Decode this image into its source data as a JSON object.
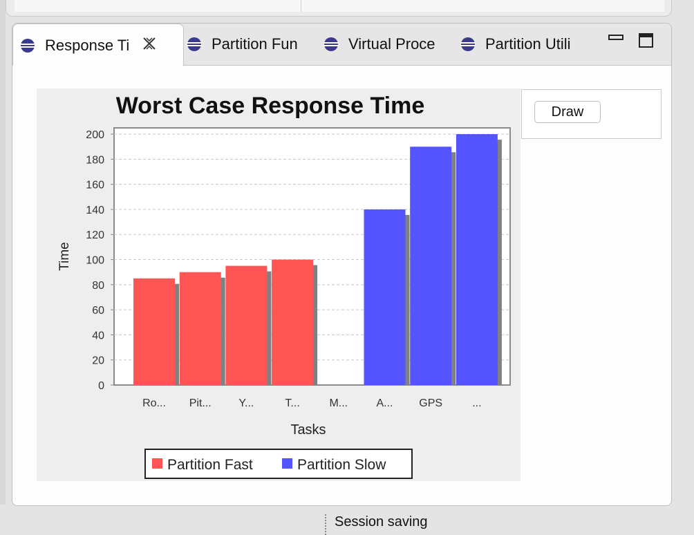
{
  "tabs": [
    {
      "label": "Response Ti",
      "active": true,
      "closable": true,
      "icon": "eclipse-orb-icon"
    },
    {
      "label": "Partition Fun",
      "active": false,
      "icon": "eclipse-orb-icon"
    },
    {
      "label": "Virtual Proce",
      "active": false,
      "icon": "eclipse-orb-icon"
    },
    {
      "label": "Partition Utili",
      "active": false,
      "icon": "eclipse-orb-icon"
    }
  ],
  "window_controls": {
    "minimize_icon": "minimize-icon",
    "maximize_icon": "maximize-icon"
  },
  "draw_button": {
    "label": "Draw"
  },
  "status_bar": {
    "text": "Session saving"
  },
  "colors": {
    "fast": "#ff5555",
    "slow": "#5555ff",
    "shadow": "#808080"
  },
  "chart_data": {
    "type": "bar",
    "title": "Worst Case Response Time",
    "xlabel": "Tasks",
    "ylabel": "Time",
    "ylim": [
      0,
      205
    ],
    "yticks": [
      0,
      20,
      40,
      60,
      80,
      100,
      120,
      140,
      160,
      180,
      200
    ],
    "categories": [
      "Ro...",
      "Pit...",
      "Y...",
      "T...",
      "M...",
      "A...",
      "GPS",
      "..."
    ],
    "series": [
      {
        "name": "Partition Fast",
        "values": [
          85,
          90,
          95,
          100,
          null,
          null,
          null,
          null
        ]
      },
      {
        "name": "Partition Slow",
        "values": [
          null,
          null,
          null,
          null,
          null,
          140,
          190,
          200
        ]
      }
    ],
    "grid": true,
    "legend": "bottom"
  }
}
